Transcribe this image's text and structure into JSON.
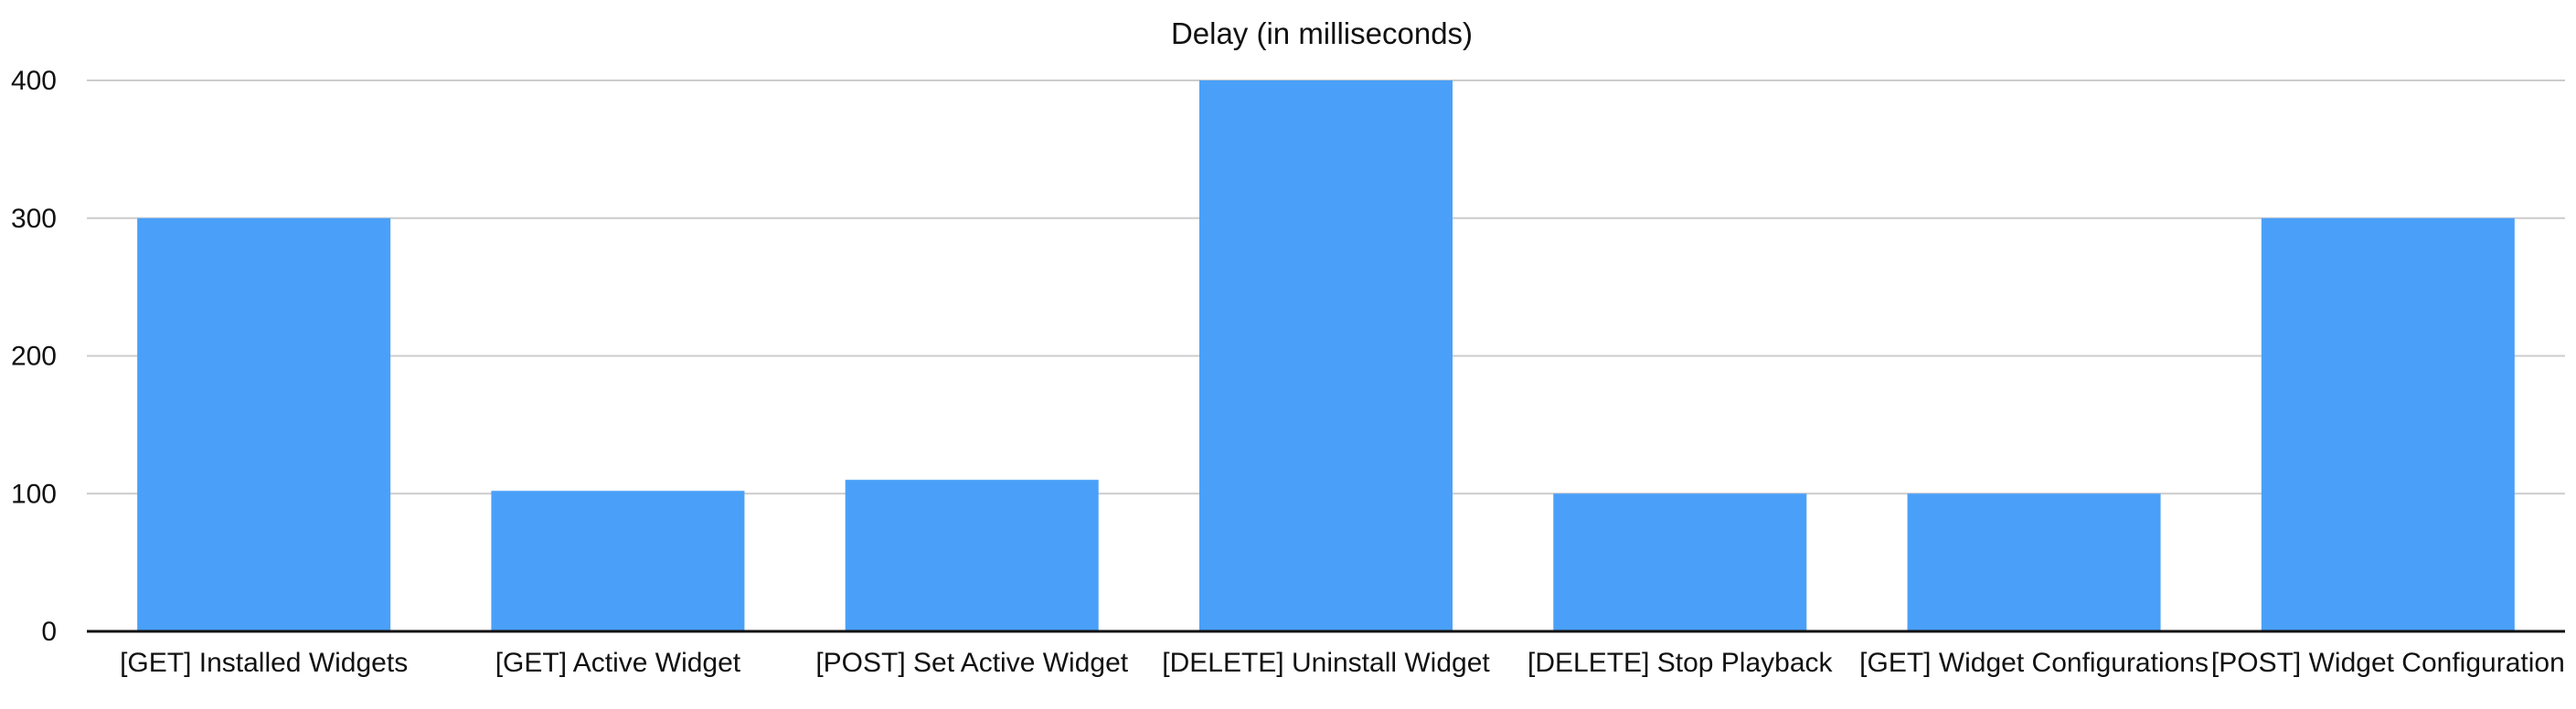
{
  "chart_data": {
    "type": "bar",
    "title": "Delay (in milliseconds)",
    "categories": [
      "[GET] Installed Widgets",
      "[GET] Active Widget",
      "[POST] Set Active Widget",
      "[DELETE] Uninstall Widget",
      "[DELETE] Stop Playback",
      "[GET] Widget Configurations",
      "[POST] Widget Configuration"
    ],
    "values": [
      300,
      102,
      110,
      400,
      100,
      100,
      300
    ],
    "ylim": [
      0,
      400
    ],
    "yticks": [
      0,
      100,
      200,
      300,
      400
    ],
    "grid": true,
    "legend": "none",
    "colors": {
      "bar": "#4aa0f8",
      "grid": "#cccccc",
      "axis": "#111111",
      "text": "#111111"
    }
  }
}
